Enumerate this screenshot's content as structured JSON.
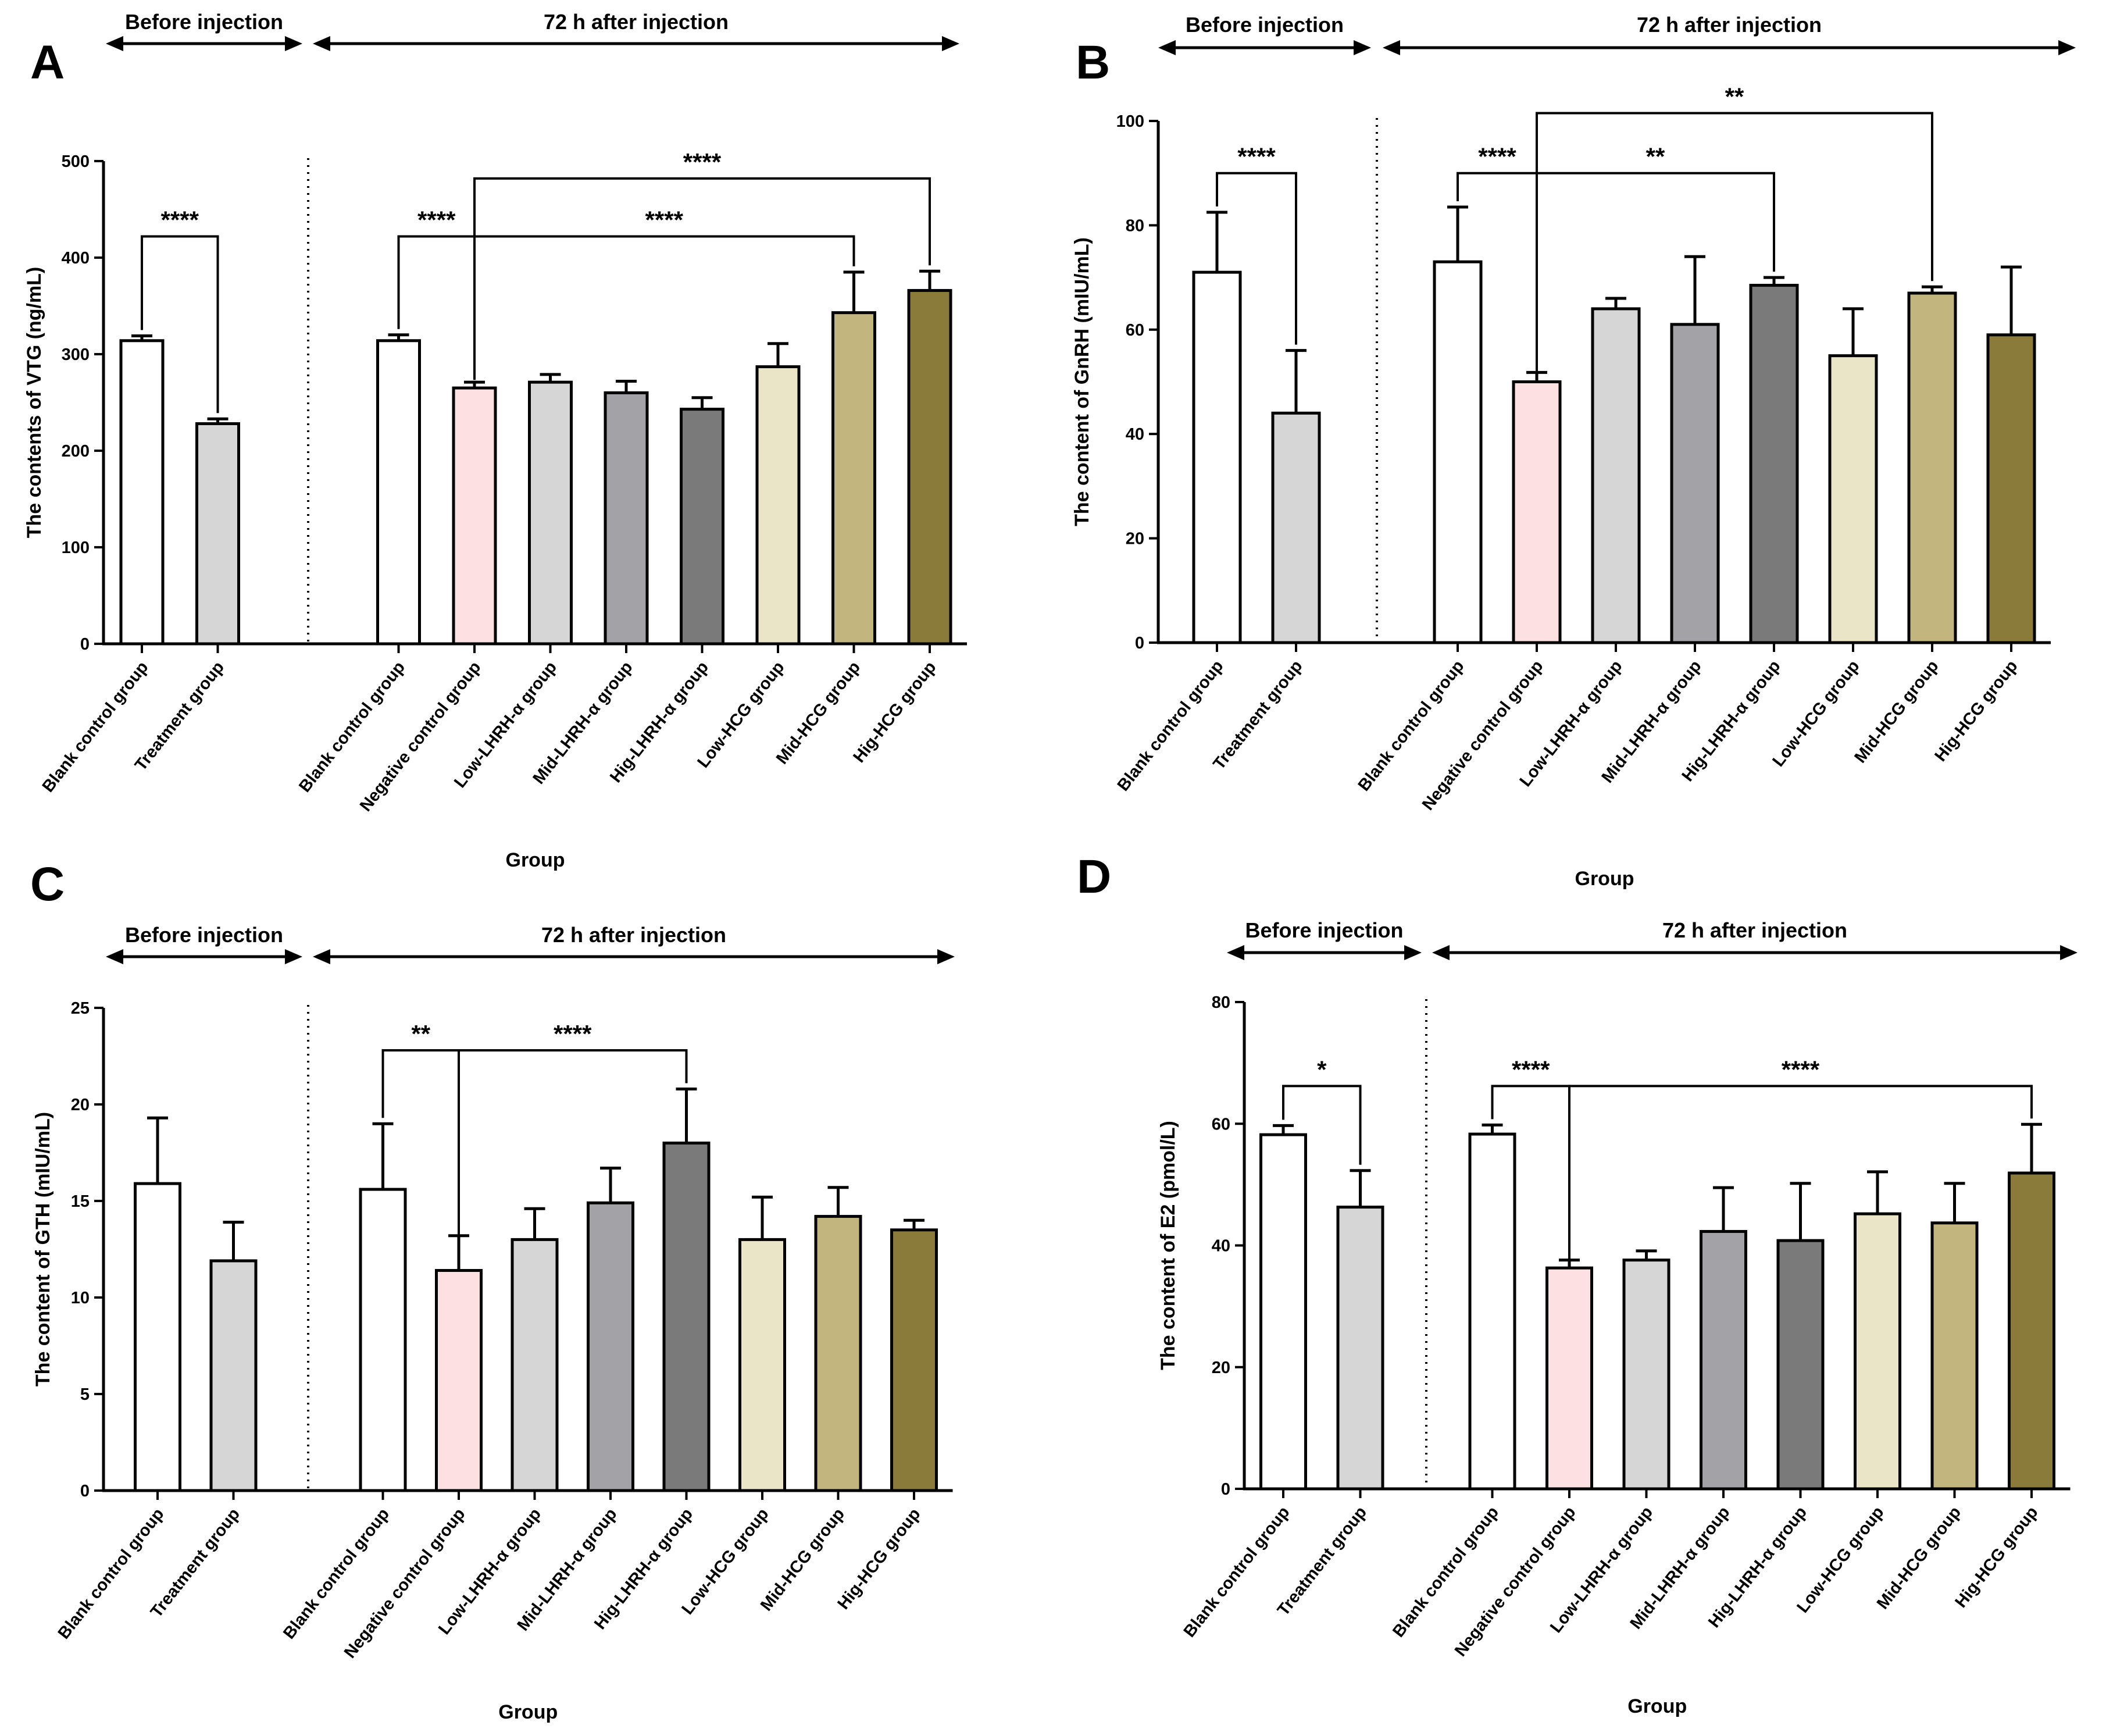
{
  "colors": {
    "white": "#ffffff",
    "light_grey": "#d6d6d6",
    "mid_grey": "#a2a2a7",
    "dark_grey": "#7a7a7a",
    "pink": "#fde0e2",
    "cream": "#ebe5c8",
    "tan": "#c2b57d",
    "olive": "#8a7b3a"
  },
  "chart_data": [
    {
      "id": "A",
      "type": "bar",
      "panel_label": "A",
      "ylabel": "The contents of VTG (ng/mL)",
      "xlabel": "Group",
      "ylim": [
        0,
        500
      ],
      "yticks": [
        0,
        100,
        200,
        300,
        400,
        500
      ],
      "sections": [
        "Before injection",
        "72 h after injection"
      ],
      "categories": [
        "Blank control group",
        "Treatment group",
        "Blank control group",
        "Negative control group",
        "Low-LHRH-α group",
        "Mid-LHRH-α group",
        "Hig-LHRH-α group",
        "Low-HCG group",
        "Mid-HCG group",
        "Hig-HCG group"
      ],
      "values": [
        314,
        228,
        314,
        265,
        271,
        260,
        243,
        287,
        343,
        366
      ],
      "errors": [
        5,
        5,
        6,
        6,
        8,
        12,
        12,
        24,
        42,
        20
      ],
      "fill_colors": [
        "white",
        "light_grey",
        "white",
        "pink",
        "light_grey",
        "mid_grey",
        "dark_grey",
        "cream",
        "tan",
        "olive"
      ],
      "significance": [
        {
          "from": 0,
          "to": 1,
          "label": "****",
          "y": 422
        },
        {
          "from": 2,
          "to": 3,
          "label": "****",
          "y": 422
        },
        {
          "from": 3,
          "to": 8,
          "label": "****",
          "y": 422
        },
        {
          "from": 3,
          "to": 9,
          "label": "****",
          "y": 482
        }
      ]
    },
    {
      "id": "B",
      "type": "bar",
      "panel_label": "B",
      "ylabel": "The content of GnRH (mIU/mL)",
      "xlabel": "Group",
      "ylim": [
        0,
        100
      ],
      "yticks": [
        0,
        20,
        40,
        60,
        80,
        100
      ],
      "sections": [
        "Before injection",
        "72 h after injection"
      ],
      "categories": [
        "Blank control group",
        "Treatment group",
        "Blank control group",
        "Negative control group",
        "Low-LHRH-α group",
        "Mid-LHRH-α group",
        "Hig-LHRH-α group",
        "Low-HCG group",
        "Mid-HCG group",
        "Hig-HCG group"
      ],
      "values": [
        71,
        44,
        73,
        50,
        64,
        61,
        68.5,
        55,
        67,
        59
      ],
      "errors": [
        11.5,
        12,
        10.5,
        1.8,
        2,
        13,
        1.5,
        9,
        1.2,
        13
      ],
      "fill_colors": [
        "white",
        "light_grey",
        "white",
        "pink",
        "light_grey",
        "mid_grey",
        "dark_grey",
        "cream",
        "tan",
        "olive"
      ],
      "significance": [
        {
          "from": 0,
          "to": 1,
          "label": "****",
          "y": 90
        },
        {
          "from": 2,
          "to": 3,
          "label": "****",
          "y": 90
        },
        {
          "from": 3,
          "to": 6,
          "label": "**",
          "y": 90
        },
        {
          "from": 3,
          "to": 8,
          "label": "**",
          "y": 101.5
        }
      ]
    },
    {
      "id": "C",
      "type": "bar",
      "panel_label": "C",
      "ylabel": "The content of GTH (mIU/mL)",
      "xlabel": "Group",
      "ylim": [
        0,
        25
      ],
      "yticks": [
        0,
        5,
        10,
        15,
        20,
        25
      ],
      "sections": [
        "Before injection",
        "72 h after injection"
      ],
      "categories": [
        "Blank control group",
        "Treatment group",
        "Blank control group",
        "Negative control group",
        "Low-LHRH-α group",
        "Mid-LHRH-α group",
        "Hig-LHRH-α group",
        "Low-HCG group",
        "Mid-HCG group",
        "Hig-HCG group"
      ],
      "values": [
        15.9,
        11.9,
        15.6,
        11.4,
        13.0,
        14.9,
        18.0,
        13.0,
        14.2,
        13.5
      ],
      "errors": [
        3.4,
        2.0,
        3.4,
        1.8,
        1.6,
        1.8,
        2.8,
        2.2,
        1.5,
        0.5
      ],
      "fill_colors": [
        "white",
        "light_grey",
        "white",
        "pink",
        "light_grey",
        "mid_grey",
        "dark_grey",
        "cream",
        "tan",
        "olive"
      ],
      "significance": [
        {
          "from": 2,
          "to": 3,
          "label": "**",
          "y": 22.8
        },
        {
          "from": 3,
          "to": 6,
          "label": "****",
          "y": 22.8
        }
      ]
    },
    {
      "id": "D",
      "type": "bar",
      "panel_label": "D",
      "ylabel": "The content of E2 (pmol/L)",
      "xlabel": "Group",
      "ylim": [
        0,
        80
      ],
      "yticks": [
        0,
        20,
        40,
        60,
        80
      ],
      "sections": [
        "Before injection",
        "72 h after injection"
      ],
      "categories": [
        "Blank control group",
        "Treatment group",
        "Blank control group",
        "Negative control group",
        "Low-LHRH-α group",
        "Mid-LHRH-α group",
        "Hig-LHRH-α group",
        "Low-HCG group",
        "Mid-HCG group",
        "Hig-HCG group"
      ],
      "values": [
        58.2,
        46.3,
        58.3,
        36.3,
        37.6,
        42.3,
        40.8,
        45.2,
        43.7,
        51.9
      ],
      "errors": [
        1.5,
        6,
        1.5,
        1.3,
        1.5,
        7.2,
        9.4,
        6.9,
        6.5,
        8
      ],
      "fill_colors": [
        "white",
        "light_grey",
        "white",
        "pink",
        "light_grey",
        "mid_grey",
        "dark_grey",
        "cream",
        "tan",
        "olive"
      ],
      "significance": [
        {
          "from": 0,
          "to": 1,
          "label": "*",
          "y": 66.2
        },
        {
          "from": 2,
          "to": 3,
          "label": "****",
          "y": 66.2
        },
        {
          "from": 3,
          "to": 9,
          "label": "****",
          "y": 66.2
        }
      ]
    }
  ]
}
